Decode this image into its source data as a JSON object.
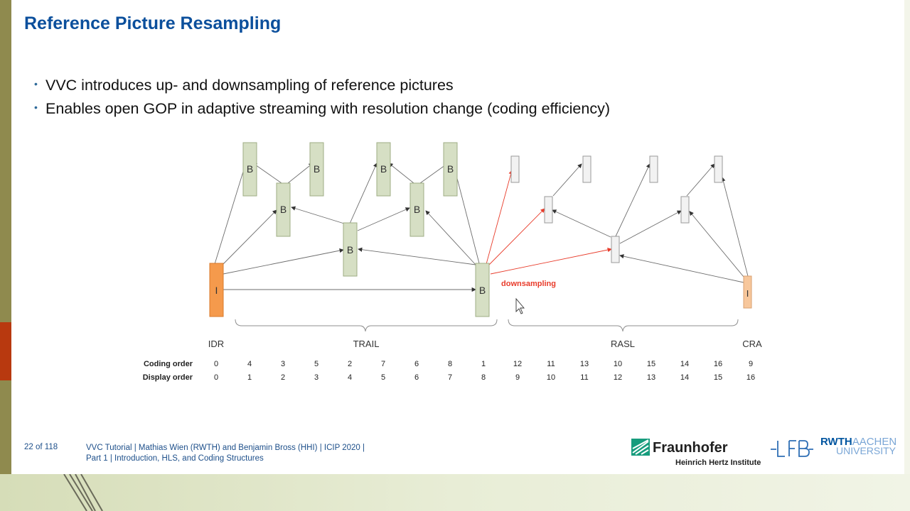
{
  "slide": {
    "title": "Reference Picture Resampling",
    "bullets": [
      "VVC introduces up- and downsampling of reference pictures",
      "Enables open GOP in adaptive streaming with resolution change (coding efficiency)"
    ]
  },
  "diagram": {
    "frame_labels": {
      "idr": "I",
      "trail_b": "B",
      "cra": "I"
    },
    "annotation": "downsampling",
    "groups": {
      "idr": "IDR",
      "trail": "TRAIL",
      "rasl": "RASL",
      "cra": "CRA"
    },
    "rows": {
      "coding_label": "Coding order",
      "display_label": "Display order",
      "coding": [
        "0",
        "4",
        "3",
        "5",
        "2",
        "7",
        "6",
        "8",
        "1",
        "12",
        "11",
        "13",
        "10",
        "15",
        "14",
        "16",
        "9"
      ],
      "display": [
        "0",
        "1",
        "2",
        "3",
        "4",
        "5",
        "6",
        "7",
        "8",
        "9",
        "10",
        "11",
        "12",
        "13",
        "14",
        "15",
        "16"
      ]
    },
    "colors": {
      "i_frame": "#f59a4c",
      "b_frame": "#d6dfc4",
      "rasl_frame": "#f2f2f2",
      "cra_frame": "#f7c79c",
      "downsampling": "#e83b2a"
    }
  },
  "footer": {
    "page": "22 of 118",
    "line1": "VVC Tutorial  |  Mathias Wien (RWTH) and Benjamin Bross (HHI)  |  ICIP 2020  |",
    "line2": "Part 1  |  Introduction, HLS, and Coding Structures"
  },
  "logos": {
    "fraunhofer_name": "Fraunhofer",
    "fraunhofer_sub": "Heinrich Hertz Institute",
    "lfb": "LFB",
    "rwth_bold": "RWTH",
    "rwth_light": "AACHEN",
    "rwth_bottom": "UNIVERSITY"
  }
}
